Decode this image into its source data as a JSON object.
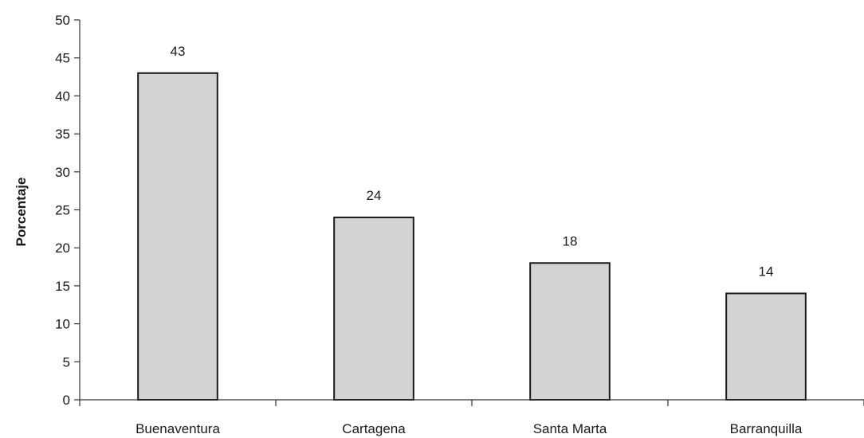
{
  "chart_data": {
    "type": "bar",
    "title": "",
    "xlabel": "",
    "ylabel": "Porcentaje",
    "categories": [
      "Buenaventura",
      "Cartagena",
      "Santa Marta",
      "Barranquilla"
    ],
    "values": [
      43,
      24,
      18,
      14
    ],
    "data_labels": [
      "43",
      "24",
      "18",
      "14"
    ],
    "ylim": [
      0,
      50
    ],
    "yticks": [
      0,
      5,
      10,
      15,
      20,
      25,
      30,
      35,
      40,
      45,
      50
    ],
    "ytick_labels": [
      "0",
      "5",
      "10",
      "15",
      "20",
      "25",
      "30",
      "35",
      "40",
      "45",
      "50"
    ],
    "grid": false,
    "legend": "none",
    "bar_color": "#d3d3d3",
    "bar_edge_color": "#1a1a1a"
  }
}
